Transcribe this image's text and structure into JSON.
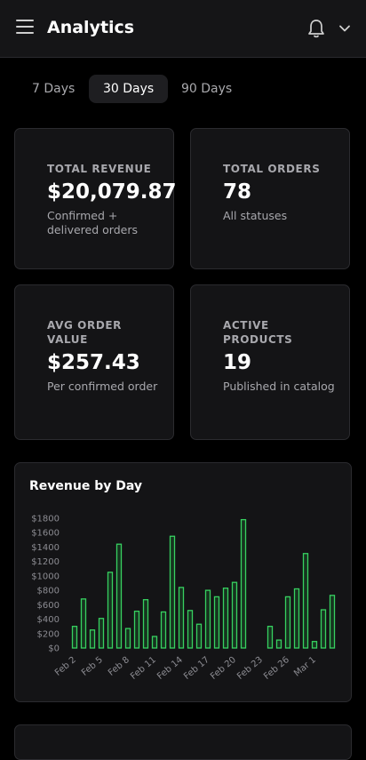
{
  "header": {
    "title": "Analytics",
    "menu_icon": "hamburger-menu-icon",
    "bell_icon": "bell-icon",
    "chevron_icon": "chevron-down-icon"
  },
  "tabs": [
    {
      "label": "7 Days",
      "active": false
    },
    {
      "label": "30 Days",
      "active": true
    },
    {
      "label": "90 Days",
      "active": false
    }
  ],
  "stats": [
    {
      "label": "TOTAL REVENUE",
      "value": "$20,079.87",
      "sub": "Confirmed + delivered orders"
    },
    {
      "label": "TOTAL ORDERS",
      "value": "78",
      "sub": "All statuses"
    },
    {
      "label": "AVG ORDER VALUE",
      "value": "$257.43",
      "sub": "Per confirmed order"
    },
    {
      "label": "ACTIVE PRODUCTS",
      "value": "19",
      "sub": "Published in catalog"
    }
  ],
  "colors": {
    "bar_fill": "#16331f",
    "bar_stroke": "#37d160",
    "background": "#000000",
    "card": "#141416"
  },
  "chart_data": {
    "type": "bar",
    "title": "Revenue by Day",
    "xlabel": "",
    "ylabel": "",
    "ylim": [
      0,
      1800
    ],
    "y_ticks": [
      "$0",
      "$200",
      "$400",
      "$600",
      "$800",
      "$1000",
      "$1200",
      "$1400",
      "$1600",
      "$1800"
    ],
    "x_tick_labels": [
      "Feb 2",
      "Feb 5",
      "Feb 8",
      "Feb 11",
      "Feb 14",
      "Feb 17",
      "Feb 20",
      "Feb 23",
      "Feb 26",
      "Mar 1"
    ],
    "categories": [
      "Feb 2",
      "Feb 3",
      "Feb 4",
      "Feb 5",
      "Feb 6",
      "Feb 7",
      "Feb 8",
      "Feb 9",
      "Feb 10",
      "Feb 11",
      "Feb 12",
      "Feb 13",
      "Feb 14",
      "Feb 15",
      "Feb 16",
      "Feb 17",
      "Feb 18",
      "Feb 19",
      "Feb 20",
      "Feb 21",
      "Feb 22",
      "Feb 23",
      "Feb 24",
      "Feb 25",
      "Feb 26",
      "Feb 27",
      "Feb 28",
      "Mar 1",
      "Mar 2",
      "Mar 3"
    ],
    "values": [
      300,
      680,
      250,
      410,
      1050,
      1440,
      270,
      510,
      670,
      160,
      500,
      1550,
      840,
      520,
      330,
      800,
      710,
      830,
      910,
      1780,
      0,
      0,
      300,
      110,
      710,
      820,
      1310,
      90,
      530,
      730
    ]
  }
}
